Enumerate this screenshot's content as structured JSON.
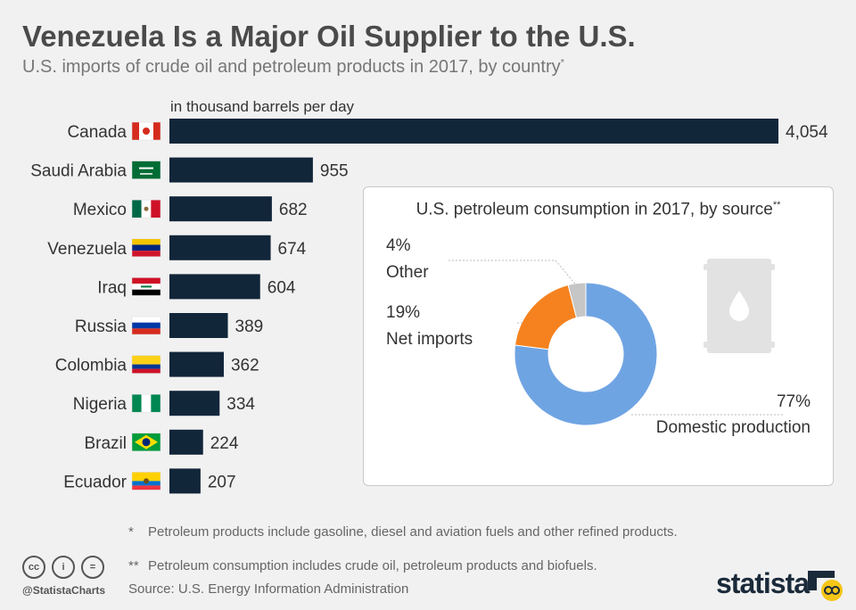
{
  "header": {
    "title": "Venezuela Is a Major Oil Supplier to the U.S.",
    "subtitle": "U.S. imports of crude oil and petroleum products in 2017, by country",
    "subtitle_mark": "*"
  },
  "colors": {
    "bar": "#12263a",
    "domestic": "#6fa4e3",
    "net_imports": "#f5821f",
    "other": "#c6c6c6"
  },
  "chart_data": [
    {
      "type": "bar",
      "orientation": "horizontal",
      "unit_label": "in thousand barrels per day",
      "categories": [
        "Canada",
        "Saudi Arabia",
        "Mexico",
        "Venezuela",
        "Iraq",
        "Russia",
        "Colombia",
        "Nigeria",
        "Brazil",
        "Ecuador"
      ],
      "values": [
        4054,
        955,
        682,
        674,
        604,
        389,
        362,
        334,
        224,
        207
      ],
      "value_labels": [
        "4,054",
        "955",
        "682",
        "674",
        "604",
        "389",
        "362",
        "334",
        "224",
        "207"
      ],
      "flag_icons": [
        "canada-flag-icon",
        "saudi-arabia-flag-icon",
        "mexico-flag-icon",
        "venezuela-flag-icon",
        "iraq-flag-icon",
        "russia-flag-icon",
        "colombia-flag-icon",
        "nigeria-flag-icon",
        "brazil-flag-icon",
        "ecuador-flag-icon"
      ]
    },
    {
      "type": "pie",
      "donut": true,
      "title": "U.S. petroleum consumption in 2017, by source",
      "title_mark": "**",
      "slices": [
        {
          "label": "Domestic production",
          "value": 77,
          "value_label": "77%"
        },
        {
          "label": "Net imports",
          "value": 19,
          "value_label": "19%"
        },
        {
          "label": "Other",
          "value": 4,
          "value_label": "4%"
        }
      ],
      "icon": "oil-barrel-icon"
    }
  ],
  "footnotes": {
    "note1_mark": "*",
    "note1": "Petroleum products include gasoline, diesel and aviation fuels and other refined products.",
    "note2_mark": "**",
    "note2": "Petroleum consumption includes crude oil, petroleum products and biofuels.",
    "source": "Source: U.S. Energy Information Administration"
  },
  "license_icons": [
    "cc-icon",
    "attribution-icon",
    "no-derivatives-icon"
  ],
  "license_text": [
    "cc",
    "i",
    "="
  ],
  "handle": "@StatistaCharts",
  "brand": "statista"
}
